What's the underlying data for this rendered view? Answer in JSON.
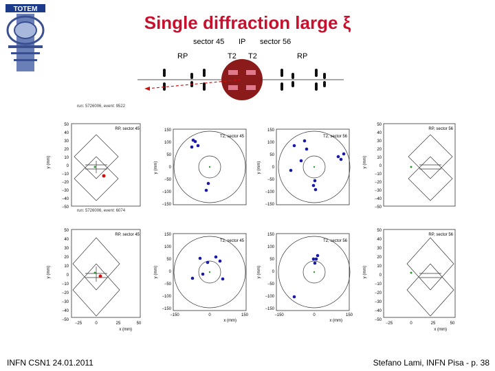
{
  "header": {
    "logo_text": "TOTEM",
    "title": "Single diffraction large ξ"
  },
  "layout_labels": {
    "sector45": "sector 45",
    "ip": "IP",
    "sector56": "sector 56",
    "rp_left": "RP",
    "t2_left": "T2",
    "t2_right": "T2",
    "rp_right": "RP"
  },
  "events": [
    {
      "label": "run: 5726006, event: 9522"
    },
    {
      "label": "run: 5726006, event: 6074"
    }
  ],
  "rp_panels": {
    "left_title": "RP, sector 45",
    "right_title": "RP, sector 56",
    "xlabel": "x (mm)",
    "ylabel": "y (mm)",
    "y_ticks": [
      "50",
      "40",
      "30",
      "20",
      "10",
      "0",
      "−10",
      "−20",
      "−30",
      "−40",
      "−50"
    ],
    "x_ticks": [
      "−25",
      "0",
      "25",
      "50"
    ]
  },
  "t2_panels": {
    "left_title": "T2, sector 45",
    "right_title": "T2, sector 56",
    "xlabel": "x (mm)",
    "ylabel": "y (mm)",
    "y_ticks": [
      "150",
      "100",
      "50",
      "0",
      "−50",
      "−100",
      "−150"
    ],
    "x_ticks": [
      "−150",
      "0",
      "150"
    ]
  },
  "colors": {
    "title": "#c8102e",
    "hit_blue": "#1a1aa8",
    "hit_red": "#d01010",
    "ip_fill": "#8b1a1a",
    "ip_detector": "#e07a8a",
    "beam": "#d01010"
  },
  "footer": {
    "left": "INFN CSN1 24.01.2011",
    "right": "Stefano Lami, INFN Pisa - p. 38"
  }
}
